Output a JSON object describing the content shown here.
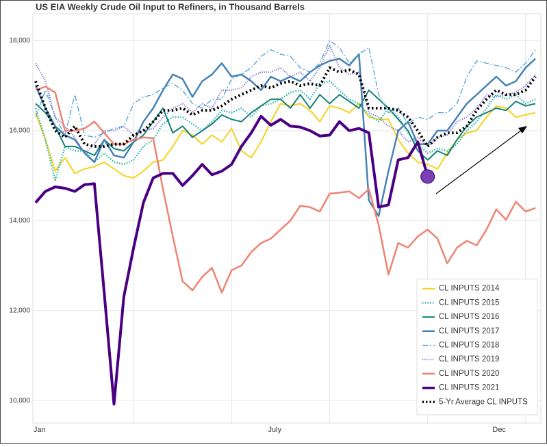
{
  "chart_data": {
    "type": "line",
    "title": "US EIA Weekly Crude Oil Input to Refiners, in Thousand Barrels",
    "x": [
      1,
      2,
      3,
      4,
      5,
      6,
      7,
      8,
      9,
      10,
      11,
      12,
      13,
      14,
      15,
      16,
      17,
      18,
      19,
      20,
      21,
      22,
      23,
      24,
      25,
      26,
      27,
      28,
      29,
      30,
      31,
      32,
      33,
      34,
      35,
      36,
      37,
      38,
      39,
      40,
      41,
      42,
      43,
      44,
      45,
      46,
      47,
      48,
      49,
      50,
      51,
      52
    ],
    "xlim": [
      1,
      52.2
    ],
    "xticks": [
      {
        "value": 1.4,
        "label": "Jan"
      },
      {
        "value": 25.4,
        "label": "July"
      },
      {
        "value": 48.3,
        "label": "Dec"
      }
    ],
    "xgrid": [
      11,
      21,
      31,
      41,
      51
    ],
    "ylim": [
      9500,
      18600
    ],
    "yticks": [
      {
        "value": 10000,
        "label": "10,000"
      },
      {
        "value": 12000,
        "label": "12,000"
      },
      {
        "value": 14000,
        "label": "14,000"
      },
      {
        "value": 16000,
        "label": "16,000"
      },
      {
        "value": 18000,
        "label": "18,000"
      }
    ],
    "grid": true,
    "legend": "lower right",
    "series": [
      {
        "name": "CL INPUTS 2014",
        "color": "#f5d31c",
        "dash": "solid",
        "width": 2,
        "values": [
          16400,
          15800,
          15100,
          15400,
          15050,
          15150,
          15200,
          15300,
          15150,
          15000,
          14950,
          15100,
          15300,
          15350,
          15650,
          16000,
          15900,
          15700,
          15900,
          15750,
          16050,
          15550,
          15400,
          15750,
          16200,
          16600,
          16550,
          16600,
          16450,
          16200,
          16550,
          16500,
          16400,
          16600,
          16300,
          16250,
          16250,
          15800,
          15500,
          15300,
          15250,
          15150,
          15500,
          15800,
          15950,
          16000,
          16300,
          16550,
          16500,
          16300,
          16350,
          16400
        ]
      },
      {
        "name": "CL INPUTS 2015",
        "color": "#26b5a8",
        "dash": "dotted",
        "width": 2.5,
        "values": [
          16500,
          15800,
          14900,
          15650,
          15550,
          15550,
          15300,
          15500,
          15300,
          15250,
          15350,
          15650,
          15800,
          16150,
          16300,
          16300,
          16150,
          16000,
          16200,
          16450,
          16400,
          16500,
          16300,
          16550,
          16600,
          16700,
          16850,
          16900,
          16700,
          17050,
          17100,
          16900,
          16700,
          16600,
          16350,
          16200,
          16500,
          16300,
          15950,
          15700,
          15500,
          15600,
          15550,
          15700,
          16000,
          16200,
          16500,
          16800,
          16700,
          16800,
          16600,
          16700
        ]
      },
      {
        "name": "CL INPUTS 2016",
        "color": "#12807a",
        "dash": "solid",
        "width": 2,
        "values": [
          16600,
          16400,
          16100,
          15650,
          15650,
          15550,
          15450,
          15800,
          15600,
          15550,
          15750,
          15900,
          16200,
          16500,
          15950,
          16100,
          15850,
          16000,
          16150,
          16350,
          16250,
          16200,
          16400,
          16550,
          16700,
          16700,
          16500,
          16800,
          16500,
          16800,
          16600,
          16800,
          16650,
          16500,
          16900,
          16700,
          16500,
          16250,
          16000,
          15550,
          15350,
          15550,
          15450,
          15800,
          16100,
          16300,
          16400,
          16500,
          16450,
          16650,
          16550,
          16600
        ]
      },
      {
        "name": "CL INPUTS 2017",
        "color": "#4682b4",
        "dash": "solid",
        "width": 2.5,
        "values": [
          17000,
          16500,
          16100,
          15900,
          15800,
          15500,
          15300,
          15800,
          15450,
          15400,
          15750,
          16200,
          16500,
          16900,
          17250,
          17150,
          16750,
          17100,
          17250,
          17500,
          17200,
          17250,
          17100,
          16900,
          17200,
          17100,
          17200,
          17100,
          17300,
          17450,
          17550,
          17600,
          17450,
          17700,
          14450,
          14100,
          15100,
          16000,
          16200,
          15700,
          15700,
          16000,
          16000,
          16300,
          16600,
          16800,
          17000,
          17200,
          17000,
          17100,
          17400,
          17600
        ]
      },
      {
        "name": "CL INPUTS 2018",
        "color": "#4aa0dc",
        "dash": "dashdot",
        "width": 1.3,
        "values": [
          16300,
          16900,
          16300,
          15900,
          16800,
          15900,
          15850,
          15950,
          16050,
          16100,
          16600,
          16750,
          16800,
          16950,
          17050,
          16900,
          16600,
          16500,
          16700,
          16700,
          17150,
          17250,
          17400,
          17650,
          17800,
          17700,
          17650,
          17400,
          17300,
          17500,
          18000,
          17850,
          17500,
          17700,
          17850,
          16800,
          16400,
          16500,
          16150,
          16300,
          16250,
          16400,
          16400,
          16600,
          17200,
          17550,
          17500,
          17450,
          17400,
          17300,
          17500,
          17800
        ]
      },
      {
        "name": "CL INPUTS 2019",
        "color": "#7b68c8",
        "dash": "dotted",
        "width": 2,
        "values": [
          17500,
          17100,
          16300,
          16100,
          15850,
          15500,
          15700,
          16000,
          16000,
          16100,
          15900,
          16000,
          16050,
          16300,
          16500,
          16600,
          16400,
          16600,
          16500,
          16900,
          16900,
          16950,
          17200,
          17300,
          17300,
          17400,
          17200,
          17300,
          17100,
          17400,
          17900,
          17400,
          17250,
          17300,
          16400,
          16300,
          16100,
          16000,
          15750,
          15850,
          15650,
          15850,
          15900,
          16200,
          16300,
          16500,
          16800,
          16750,
          16800,
          16850,
          17000,
          17250
        ]
      },
      {
        "name": "CL INPUTS 2020",
        "color": "#f08272",
        "dash": "solid",
        "width": 2.5,
        "values": [
          16900,
          16980,
          16850,
          16000,
          16000,
          16050,
          16200,
          15950,
          15700,
          15700,
          15800,
          15850,
          15830,
          14700,
          13650,
          12650,
          12450,
          12750,
          12950,
          12400,
          12900,
          13000,
          13300,
          13500,
          13600,
          13800,
          14000,
          14330,
          14300,
          14200,
          14600,
          14620,
          14650,
          14500,
          14700,
          13900,
          12800,
          13500,
          13400,
          13650,
          13800,
          13600,
          13050,
          13400,
          13550,
          13450,
          13800,
          14250,
          14020,
          14420,
          14200,
          14280
        ]
      },
      {
        "name": "CL INPUTS 2021",
        "color": "#4b0082",
        "dash": "solid",
        "width": 4,
        "end_marker": true,
        "values": [
          14400,
          14650,
          14750,
          14720,
          14650,
          14800,
          14820,
          12400,
          9920,
          12300,
          13400,
          14400,
          14950,
          15050,
          15050,
          14780,
          15000,
          15250,
          15020,
          15100,
          15250,
          15650,
          15950,
          16320,
          16120,
          16250,
          16100,
          16080,
          16000,
          15880,
          15900,
          16200,
          16000,
          16050,
          15950,
          14300,
          14350,
          15350,
          15400,
          15750,
          14980,
          null,
          null,
          null,
          null,
          null,
          null,
          null,
          null,
          null,
          null,
          null
        ]
      },
      {
        "name": "5-Yr Average CL INPUTS",
        "color": "#000000",
        "dash": "dotted",
        "width": 4,
        "values": [
          17100,
          16500,
          16000,
          15850,
          16100,
          15700,
          15650,
          15650,
          15700,
          15700,
          15900,
          16000,
          16200,
          16450,
          16450,
          16500,
          16350,
          16450,
          16450,
          16550,
          16700,
          16800,
          16900,
          17000,
          16950,
          17050,
          17100,
          17000,
          17050,
          17000,
          17400,
          17300,
          17350,
          17250,
          16500,
          16500,
          16500,
          16450,
          16300,
          16000,
          15650,
          15850,
          15950,
          15950,
          16100,
          16450,
          16700,
          16900,
          16800,
          16800,
          16900,
          17200
        ]
      }
    ]
  }
}
